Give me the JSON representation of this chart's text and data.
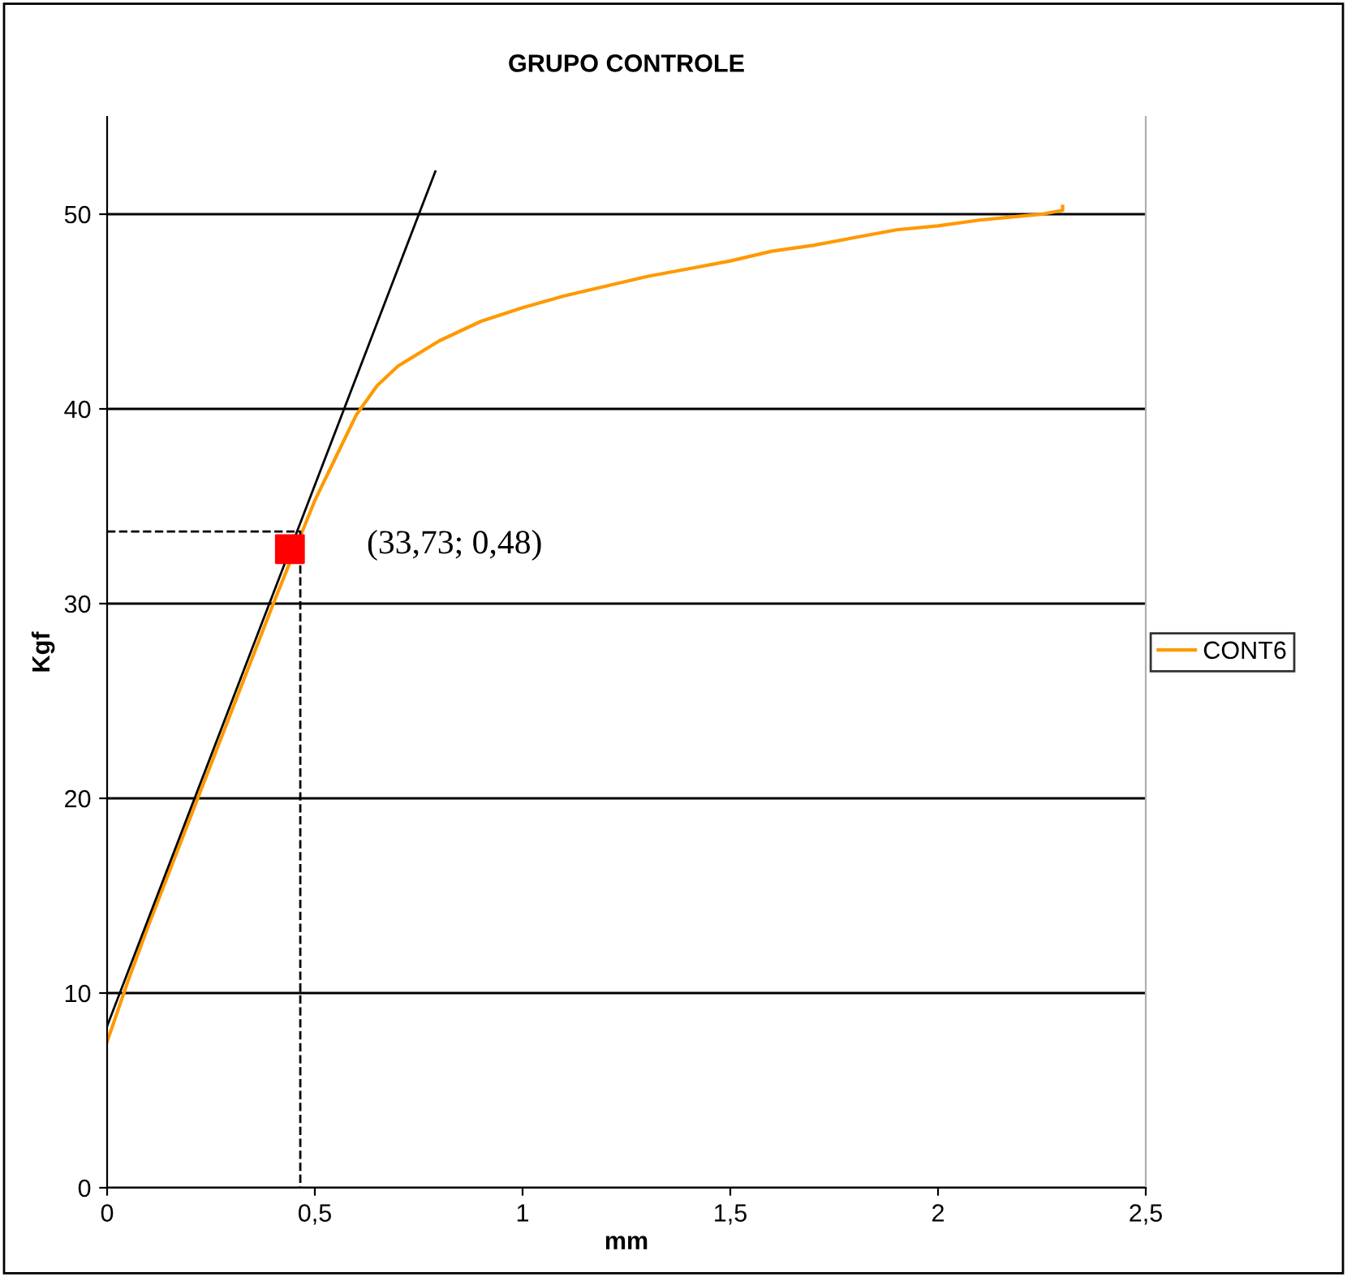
{
  "chart_data": {
    "type": "line",
    "title": "GRUPO CONTROLE",
    "xlabel": "mm",
    "ylabel": "Kgf",
    "xlim": [
      0,
      2.5
    ],
    "ylim": [
      0,
      55
    ],
    "xticks": [
      0,
      {
        "value": 0.5,
        "label": "0,5"
      },
      1,
      {
        "value": 1.5,
        "label": "1,5"
      },
      2,
      {
        "value": 2.5,
        "label": "2,5"
      }
    ],
    "yticks": [
      0,
      10,
      20,
      30,
      40,
      50
    ],
    "grid": "y",
    "legend": "right",
    "series": [
      {
        "name": "CONT6",
        "color": "#ff9900",
        "x": [
          0,
          0.05,
          0.1,
          0.2,
          0.3,
          0.4,
          0.5,
          0.55,
          0.6,
          0.65,
          0.7,
          0.8,
          0.9,
          1.0,
          1.1,
          1.2,
          1.3,
          1.4,
          1.5,
          1.6,
          1.7,
          1.8,
          1.9,
          2.0,
          2.1,
          2.2,
          2.25,
          2.3,
          2.3
        ],
        "values": [
          7.5,
          10.6,
          13.5,
          19,
          24.5,
          30,
          35.3,
          37.5,
          39.7,
          41.2,
          42.2,
          43.5,
          44.5,
          45.2,
          45.8,
          46.3,
          46.8,
          47.2,
          47.6,
          48.1,
          48.4,
          48.8,
          49.2,
          49.4,
          49.7,
          49.9,
          50.0,
          50.2,
          50.4
        ]
      },
      {
        "type": "line",
        "color": "#000000",
        "x": [
          0,
          0.79
        ],
        "values": [
          8.3,
          52.2
        ]
      },
      {
        "type": "line",
        "color": "#000000",
        "line_style": "dashed",
        "x": [
          0,
          0.465,
          0.465
        ],
        "values": [
          33.7,
          33.7,
          0
        ]
      },
      {
        "type": "scatter",
        "color": "#ff0000",
        "marker": "square",
        "x": [
          0.44
        ],
        "values": [
          32.8
        ]
      }
    ],
    "annotations": [
      "(33,73; 0,48)"
    ]
  }
}
